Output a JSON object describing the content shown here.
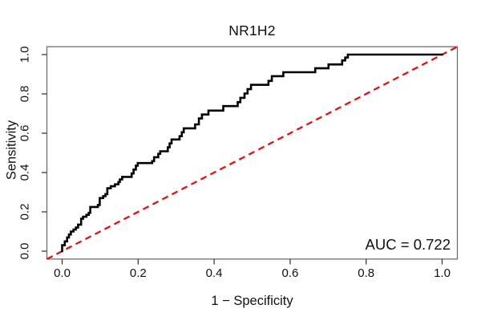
{
  "title": "NR1H2",
  "auc_annotation": "AUC = 0.722",
  "x_axis": {
    "label": "1 − Specificity",
    "tick_labels": [
      "0.0",
      "0.2",
      "0.4",
      "0.6",
      "0.8",
      "1.0"
    ],
    "tick_values": [
      0,
      0.2,
      0.4,
      0.6,
      0.8,
      1.0
    ]
  },
  "y_axis": {
    "label": "Sensitivity",
    "tick_labels": [
      "0.0",
      "0.2",
      "0.4",
      "0.6",
      "0.8",
      "1.0"
    ],
    "tick_values": [
      0,
      0.2,
      0.4,
      0.6,
      0.8,
      1.0
    ]
  },
  "colors": {
    "curve": "#000000",
    "reference_line": "#ff0000",
    "text": "#111111",
    "frame": "#6e6e6e",
    "ticks": "#3c3c3c",
    "background": "#ffffff"
  },
  "chart_data": {
    "type": "line",
    "subtype": "roc_step_curve",
    "title": "NR1H2",
    "xlabel": "1 − Specificity",
    "ylabel": "Sensitivity",
    "xlim": [
      0,
      1
    ],
    "ylim": [
      0,
      1
    ],
    "grid": false,
    "legend": "none",
    "auc": 0.722,
    "series": [
      {
        "name": "ROC curve",
        "color": "#000000",
        "line_width": 2.6,
        "step": "vertical-then-horizontal",
        "points": [
          [
            0.0,
            0.03
          ],
          [
            0.007,
            0.05
          ],
          [
            0.013,
            0.07
          ],
          [
            0.018,
            0.085
          ],
          [
            0.023,
            0.1
          ],
          [
            0.03,
            0.11
          ],
          [
            0.036,
            0.12
          ],
          [
            0.042,
            0.135
          ],
          [
            0.05,
            0.165
          ],
          [
            0.055,
            0.175
          ],
          [
            0.064,
            0.185
          ],
          [
            0.07,
            0.195
          ],
          [
            0.074,
            0.225
          ],
          [
            0.094,
            0.235
          ],
          [
            0.099,
            0.27
          ],
          [
            0.108,
            0.28
          ],
          [
            0.114,
            0.29
          ],
          [
            0.119,
            0.32
          ],
          [
            0.128,
            0.33
          ],
          [
            0.139,
            0.34
          ],
          [
            0.148,
            0.352
          ],
          [
            0.152,
            0.365
          ],
          [
            0.158,
            0.378
          ],
          [
            0.183,
            0.395
          ],
          [
            0.188,
            0.415
          ],
          [
            0.194,
            0.435
          ],
          [
            0.199,
            0.448
          ],
          [
            0.237,
            0.458
          ],
          [
            0.242,
            0.478
          ],
          [
            0.253,
            0.495
          ],
          [
            0.258,
            0.508
          ],
          [
            0.278,
            0.528
          ],
          [
            0.283,
            0.548
          ],
          [
            0.288,
            0.568
          ],
          [
            0.309,
            0.585
          ],
          [
            0.315,
            0.605
          ],
          [
            0.32,
            0.625
          ],
          [
            0.35,
            0.645
          ],
          [
            0.36,
            0.675
          ],
          [
            0.368,
            0.695
          ],
          [
            0.385,
            0.715
          ],
          [
            0.424,
            0.738
          ],
          [
            0.462,
            0.758
          ],
          [
            0.469,
            0.78
          ],
          [
            0.48,
            0.802
          ],
          [
            0.488,
            0.824
          ],
          [
            0.497,
            0.846
          ],
          [
            0.543,
            0.866
          ],
          [
            0.552,
            0.89
          ],
          [
            0.582,
            0.91
          ],
          [
            0.666,
            0.93
          ],
          [
            0.701,
            0.95
          ],
          [
            0.737,
            0.97
          ],
          [
            0.745,
            0.985
          ],
          [
            0.752,
            1.0
          ],
          [
            1.0,
            1.0
          ]
        ]
      }
    ],
    "reference_line": {
      "name": "chance diagonal",
      "from": [
        0,
        0
      ],
      "to": [
        1,
        1
      ],
      "color": "#ff0000",
      "style": "dashed",
      "line_width": 2.2
    }
  }
}
